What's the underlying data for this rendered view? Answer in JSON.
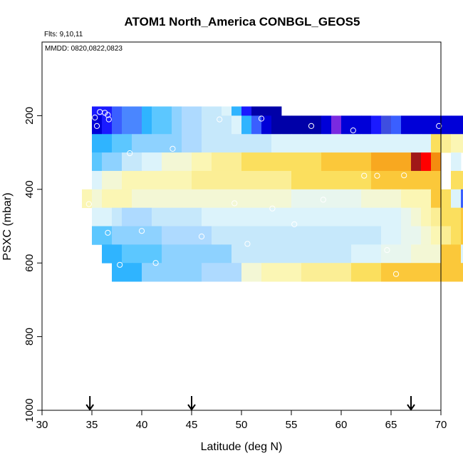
{
  "chart_data": {
    "type": "heatmap",
    "title": "ATOM1 North_America CONBGL_GEOS5",
    "subtitle_flights": "Flts: 9,10,11",
    "subtitle_dates": "MMDD: 0820,0822,0823",
    "xlabel": "Latitude (deg N)",
    "ylabel": "PSXC (mbar)",
    "xlim": [
      30,
      70
    ],
    "ylim": [
      1000,
      0
    ],
    "y_reversed": true,
    "x_ticks": [
      30,
      35,
      40,
      45,
      50,
      55,
      60,
      65,
      70
    ],
    "y_ticks": [
      200,
      400,
      600,
      800,
      1000
    ],
    "grid": false,
    "legend": "none",
    "cell_width_deg": 1,
    "row_height_mbar": 50,
    "colors": {
      "a": "#0000a8",
      "b": "#0000d8",
      "c": "#1a1aff",
      "d": "#3a5fff",
      "e": "#4a86ff",
      "f": "#2fb4ff",
      "g": "#5cc7ff",
      "h": "#8ed2ff",
      "i": "#aedaff",
      "j": "#c6e8fb",
      "k": "#dcf3fb",
      "l": "#e8f6ee",
      "m": "#f3f7d5",
      "n": "#fbf6b4",
      "o": "#fbee95",
      "p": "#fbdf5e",
      "q": "#fbc83a",
      "r": "#f8a820",
      "s": "#f48c0f",
      "t": "#ff0000",
      "u": "#a01818",
      "v": "#7a2ae0",
      "w": "#3e4ee0",
      "x": "#2d88ef"
    },
    "rows": [
      {
        "p_center": 200,
        "x_start": 35,
        "cells": "ccdeefgghiijjkfcaaa"
      },
      {
        "p_center": 225,
        "x_start": 35,
        "cells": "bcdeefgghiijjjkfdbaaaaabvbbbcwdbbbbbbbb"
      },
      {
        "p_center": 275,
        "x_start": 35,
        "cells": "ffgghhhhhiijjjjjjjkkkkkkkkkkkkkkkkponnpkx"
      },
      {
        "p_center": 325,
        "x_start": 35,
        "cells": "ghhjjkkmmmnnoooppppppppqqqqqrrrruts k c"
      },
      {
        "p_center": 375,
        "x_start": 35,
        "cells": "kmmnnnnnnnooooooooooppppppppqqqqqqq ppkc"
      },
      {
        "p_center": 425,
        "x_start": 34,
        "cells": "nmnnnmmmmmmmmmmmmmmmmlllllllmmmmnnnqpkd"
      },
      {
        "p_center": 475,
        "x_start": 35,
        "cells": "kkjiiijjjjjkkkkkkkkkkkkkkkkkkkklmnoppqkd"
      },
      {
        "p_center": 525,
        "x_start": 35,
        "cells": "gghhhhhiiiiijjjjjjjjjjjjjjjjjkkllmnopqjd"
      },
      {
        "p_center": 575,
        "x_start": 36,
        "cells": "ffgggghhhhhhhjjjjjjjjjjjjkkklllmmmqqkd"
      },
      {
        "p_center": 625,
        "x_start": 37,
        "cells": "fffhhhhhhiiiimmnnnnooooopppqqqqqqqqqqk d"
      }
    ],
    "annotations": [
      "Flight sample points",
      "Arrows at 34.8, 45.0, 67.0 deg N"
    ],
    "arrows_x": [
      34.8,
      45.0,
      67.0
    ]
  }
}
